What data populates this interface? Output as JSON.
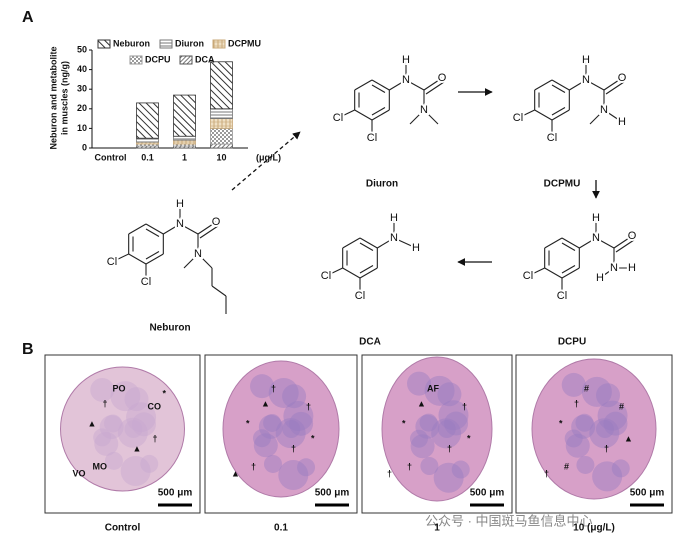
{
  "figure": {
    "panel_a": "A",
    "panel_b": "B"
  },
  "chart_data": {
    "type": "bar",
    "stacked": true,
    "ylabel": [
      "Neburon and metabolite",
      "in muscles (ng/g)"
    ],
    "xlabel": "(μg/L)",
    "categories": [
      "Control",
      "0.1",
      "1",
      "10"
    ],
    "series": [
      {
        "name": "DCA",
        "color": "#555555",
        "values": [
          0,
          1,
          1,
          2
        ]
      },
      {
        "name": "DCPU",
        "color": "#9a9a9a",
        "values": [
          0,
          1,
          1,
          8
        ]
      },
      {
        "name": "DCPMU",
        "color": "#c8a878",
        "values": [
          0,
          1,
          2,
          5
        ]
      },
      {
        "name": "Diuron",
        "color": "#777777",
        "values": [
          0,
          2,
          2,
          5
        ]
      },
      {
        "name": "Neburon",
        "color": "#333333",
        "values": [
          0,
          18,
          21,
          24
        ]
      }
    ],
    "ylim": [
      0,
      50
    ],
    "yticks": [
      0,
      10,
      20,
      30,
      40,
      50
    ]
  },
  "structures": [
    {
      "name": "Diuron",
      "atoms": [
        "N",
        "H",
        "O",
        "N",
        "Cl",
        "Cl"
      ]
    },
    {
      "name": "DCPMU",
      "atoms": [
        "N",
        "H",
        "O",
        "N",
        "H",
        "Cl",
        "Cl"
      ]
    },
    {
      "name": "DCPU",
      "atoms": [
        "N",
        "H",
        "O",
        "N",
        "H",
        "H",
        "Cl",
        "Cl"
      ]
    },
    {
      "name": "DCA",
      "atoms": [
        "N",
        "H",
        "H",
        "Cl",
        "Cl"
      ]
    },
    {
      "name": "Neburon",
      "atoms": [
        "H",
        "N",
        "O",
        "N",
        "Cl",
        "Cl"
      ]
    }
  ],
  "histology": {
    "panels": [
      {
        "caption": "Control",
        "scale": "500 μm",
        "annotations": [
          "PO",
          "CO",
          "MO",
          "VO",
          "†",
          "†",
          "▲",
          "▲",
          "*"
        ]
      },
      {
        "caption": "0.1",
        "scale": "500 μm",
        "annotations": [
          "†",
          "†",
          "†",
          "▲",
          "▲",
          "*",
          "*",
          "†"
        ]
      },
      {
        "caption": "1",
        "scale": "500 μm",
        "annotations": [
          "AF",
          "†",
          "†",
          "†",
          "▲",
          "*",
          "*",
          "†"
        ]
      },
      {
        "caption": "10 (μg/L)",
        "scale": "500 μm",
        "annotations": [
          "#",
          "#",
          "#",
          "†",
          "†",
          "▲",
          "*",
          "†"
        ]
      }
    ]
  },
  "watermark": "公众号 · 中国斑马鱼信息中心"
}
